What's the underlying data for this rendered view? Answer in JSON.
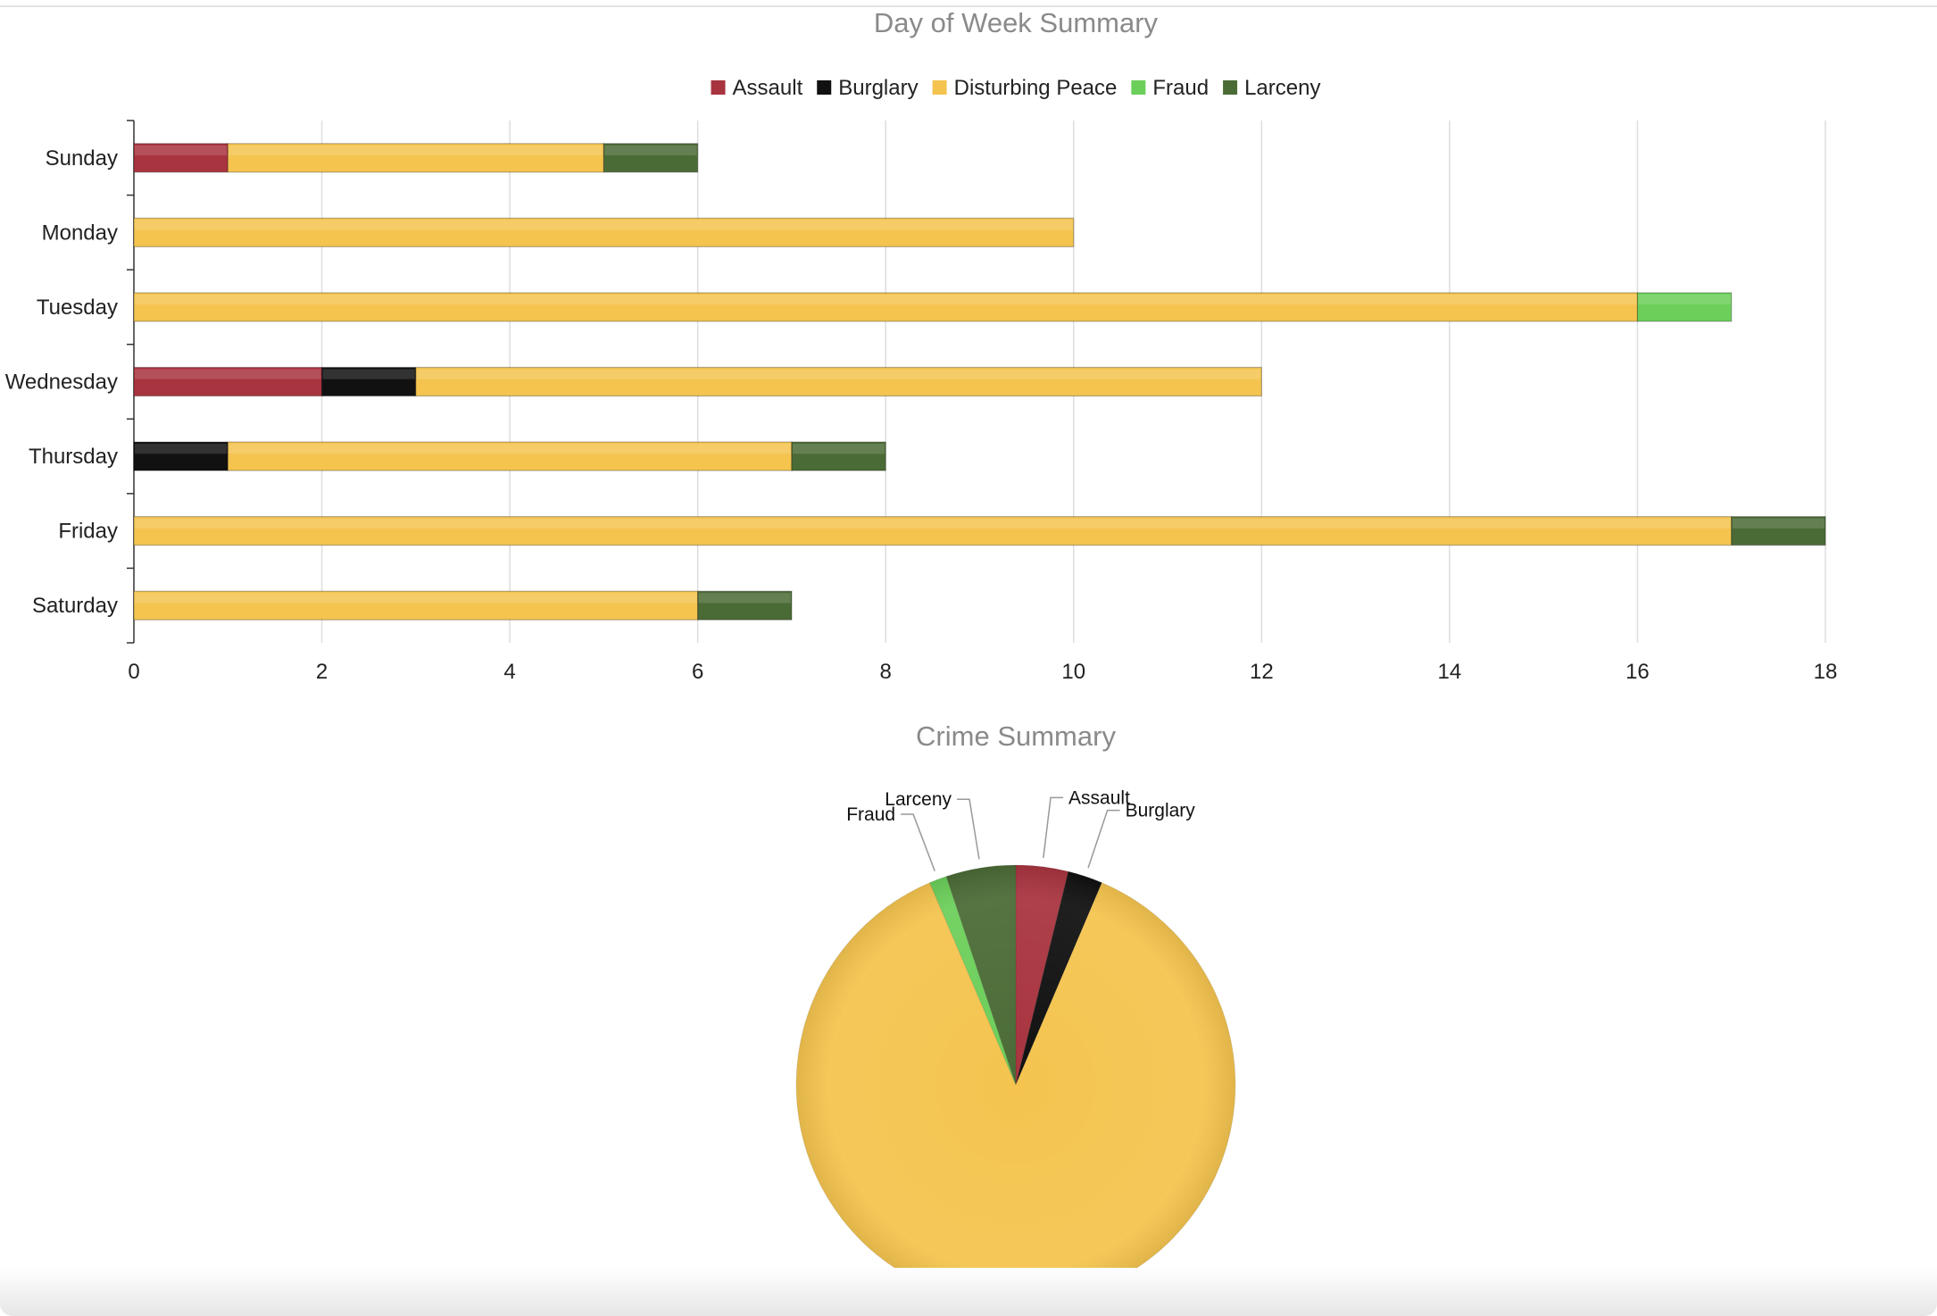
{
  "colors": {
    "Assault": "#a8343f",
    "Burglary": "#111111",
    "Disturbing Peace": "#f4c44f",
    "Fraud": "#6ccf5a",
    "Larceny": "#4b6b36"
  },
  "chart_data": [
    {
      "type": "bar",
      "orientation": "horizontal",
      "stacked": true,
      "title": "Day of Week Summary",
      "categories": [
        "Sunday",
        "Monday",
        "Tuesday",
        "Wednesday",
        "Thursday",
        "Friday",
        "Saturday"
      ],
      "series": [
        {
          "name": "Assault",
          "values": [
            1,
            0,
            0,
            2,
            0,
            0,
            0
          ]
        },
        {
          "name": "Burglary",
          "values": [
            0,
            0,
            0,
            1,
            1,
            0,
            0
          ]
        },
        {
          "name": "Disturbing Peace",
          "values": [
            4,
            10,
            16,
            9,
            6,
            17,
            6
          ]
        },
        {
          "name": "Fraud",
          "values": [
            0,
            0,
            1,
            0,
            0,
            0,
            0
          ]
        },
        {
          "name": "Larceny",
          "values": [
            1,
            0,
            0,
            0,
            1,
            1,
            1
          ]
        }
      ],
      "xlim": [
        0,
        18
      ],
      "xticks": [
        0,
        2,
        4,
        6,
        8,
        10,
        12,
        14,
        16,
        18
      ],
      "grid": true,
      "legend": "top-center"
    },
    {
      "type": "pie",
      "title": "Crime Summary",
      "slices": [
        {
          "name": "Assault",
          "value": 3
        },
        {
          "name": "Burglary",
          "value": 2
        },
        {
          "name": "Disturbing Peace",
          "value": 68
        },
        {
          "name": "Fraud",
          "value": 1
        },
        {
          "name": "Larceny",
          "value": 4
        }
      ],
      "labels_shown": [
        "Assault",
        "Burglary",
        "Fraud",
        "Larceny"
      ]
    }
  ]
}
